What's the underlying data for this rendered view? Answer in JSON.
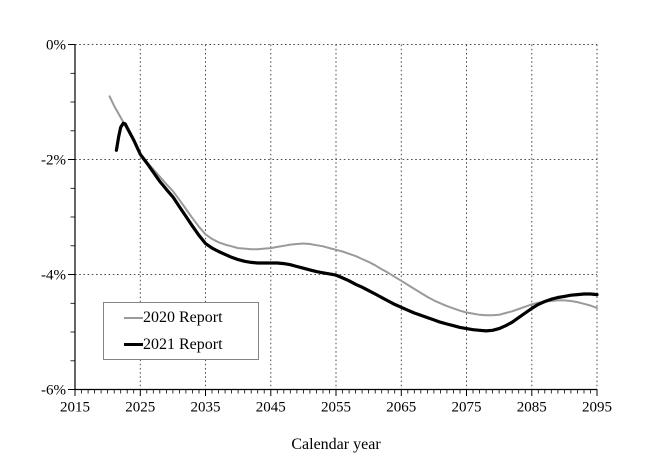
{
  "chart_data": {
    "type": "line",
    "title": "",
    "xlabel": "Calendar year",
    "ylabel": "",
    "xlim": [
      2015,
      2095
    ],
    "ylim": [
      -6,
      0
    ],
    "grid": "dotted",
    "grid_color": "#4d4d4d",
    "axis_color": "#000000",
    "text_color": "#000000",
    "legend_position": "lower-left",
    "x_axis": {
      "tick_years": [
        2015,
        2025,
        2035,
        2045,
        2055,
        2065,
        2075,
        2085,
        2095
      ],
      "tick_labels": [
        "2015",
        "2025",
        "2035",
        "2045",
        "2055",
        "2065",
        "2075",
        "2085",
        "2095"
      ],
      "minor_tick_step": 1,
      "gridline_years": [
        2025,
        2035,
        2045,
        2055,
        2065,
        2075,
        2085,
        2095
      ]
    },
    "y_axis": {
      "ticks": [
        {
          "value": 0,
          "label": "0%"
        },
        {
          "value": -2,
          "label": "-2%"
        },
        {
          "value": -4,
          "label": "-4%"
        },
        {
          "value": -6,
          "label": "-6%"
        }
      ],
      "minor_tick_step": 0.5,
      "gridline_values": [
        0,
        -2,
        -4
      ],
      "unit": "percent"
    },
    "series": [
      {
        "name": "2020 Report",
        "color": "#9a9a9a",
        "stroke_width": 2,
        "x": [
          2020.3,
          2021,
          2022,
          2023,
          2024,
          2025,
          2026,
          2027,
          2028,
          2029,
          2030,
          2031,
          2032,
          2033,
          2034,
          2035,
          2036,
          2037,
          2038,
          2039,
          2040,
          2041,
          2042,
          2043,
          2044,
          2045,
          2046,
          2047,
          2048,
          2049,
          2050,
          2051,
          2052,
          2053,
          2054,
          2055,
          2056,
          2057,
          2058,
          2059,
          2060,
          2061,
          2062,
          2063,
          2064,
          2065,
          2066,
          2067,
          2068,
          2069,
          2070,
          2071,
          2072,
          2073,
          2074,
          2075,
          2076,
          2077,
          2078,
          2079,
          2080,
          2081,
          2082,
          2083,
          2084,
          2085,
          2086,
          2087,
          2088,
          2089,
          2090,
          2091,
          2092,
          2093,
          2094,
          2095
        ],
        "y": [
          -0.9,
          -1.07,
          -1.27,
          -1.47,
          -1.68,
          -1.9,
          -2.04,
          -2.17,
          -2.3,
          -2.43,
          -2.55,
          -2.7,
          -2.86,
          -3.02,
          -3.17,
          -3.3,
          -3.38,
          -3.44,
          -3.48,
          -3.51,
          -3.54,
          -3.55,
          -3.56,
          -3.56,
          -3.55,
          -3.54,
          -3.52,
          -3.5,
          -3.48,
          -3.47,
          -3.46,
          -3.47,
          -3.49,
          -3.51,
          -3.54,
          -3.57,
          -3.6,
          -3.64,
          -3.68,
          -3.73,
          -3.78,
          -3.84,
          -3.91,
          -3.97,
          -4.04,
          -4.11,
          -4.18,
          -4.25,
          -4.32,
          -4.39,
          -4.45,
          -4.5,
          -4.55,
          -4.59,
          -4.63,
          -4.66,
          -4.68,
          -4.7,
          -4.71,
          -4.71,
          -4.7,
          -4.67,
          -4.64,
          -4.6,
          -4.56,
          -4.52,
          -4.49,
          -4.47,
          -4.46,
          -4.45,
          -4.45,
          -4.46,
          -4.48,
          -4.51,
          -4.54,
          -4.58
        ]
      },
      {
        "name": "2021 Report",
        "color": "#000000",
        "stroke_width": 3.2,
        "x": [
          2021.35,
          2021.7,
          2022,
          2022.4,
          2022.7,
          2023,
          2024,
          2025,
          2026,
          2027,
          2028,
          2029,
          2030,
          2031,
          2032,
          2033,
          2034,
          2035,
          2036,
          2037,
          2038,
          2039,
          2040,
          2041,
          2042,
          2043,
          2044,
          2045,
          2046,
          2047,
          2048,
          2049,
          2050,
          2051,
          2052,
          2053,
          2054,
          2055,
          2056,
          2057,
          2058,
          2059,
          2060,
          2061,
          2062,
          2063,
          2064,
          2065,
          2066,
          2067,
          2068,
          2069,
          2070,
          2071,
          2072,
          2073,
          2074,
          2075,
          2076,
          2077,
          2078,
          2079,
          2080,
          2081,
          2082,
          2083,
          2084,
          2085,
          2086,
          2087,
          2088,
          2089,
          2090,
          2091,
          2092,
          2093,
          2094,
          2095
        ],
        "y": [
          -1.84,
          -1.6,
          -1.44,
          -1.37,
          -1.38,
          -1.45,
          -1.66,
          -1.91,
          -2.06,
          -2.22,
          -2.38,
          -2.52,
          -2.65,
          -2.82,
          -2.99,
          -3.16,
          -3.32,
          -3.46,
          -3.54,
          -3.6,
          -3.65,
          -3.7,
          -3.74,
          -3.77,
          -3.79,
          -3.8,
          -3.8,
          -3.8,
          -3.8,
          -3.81,
          -3.83,
          -3.86,
          -3.89,
          -3.92,
          -3.95,
          -3.97,
          -3.99,
          -4.01,
          -4.06,
          -4.11,
          -4.17,
          -4.22,
          -4.28,
          -4.34,
          -4.4,
          -4.46,
          -4.52,
          -4.57,
          -4.62,
          -4.67,
          -4.71,
          -4.75,
          -4.79,
          -4.83,
          -4.86,
          -4.89,
          -4.92,
          -4.94,
          -4.96,
          -4.97,
          -4.98,
          -4.97,
          -4.94,
          -4.89,
          -4.83,
          -4.75,
          -4.67,
          -4.59,
          -4.52,
          -4.47,
          -4.43,
          -4.4,
          -4.38,
          -4.36,
          -4.35,
          -4.34,
          -4.34,
          -4.35
        ]
      }
    ]
  }
}
